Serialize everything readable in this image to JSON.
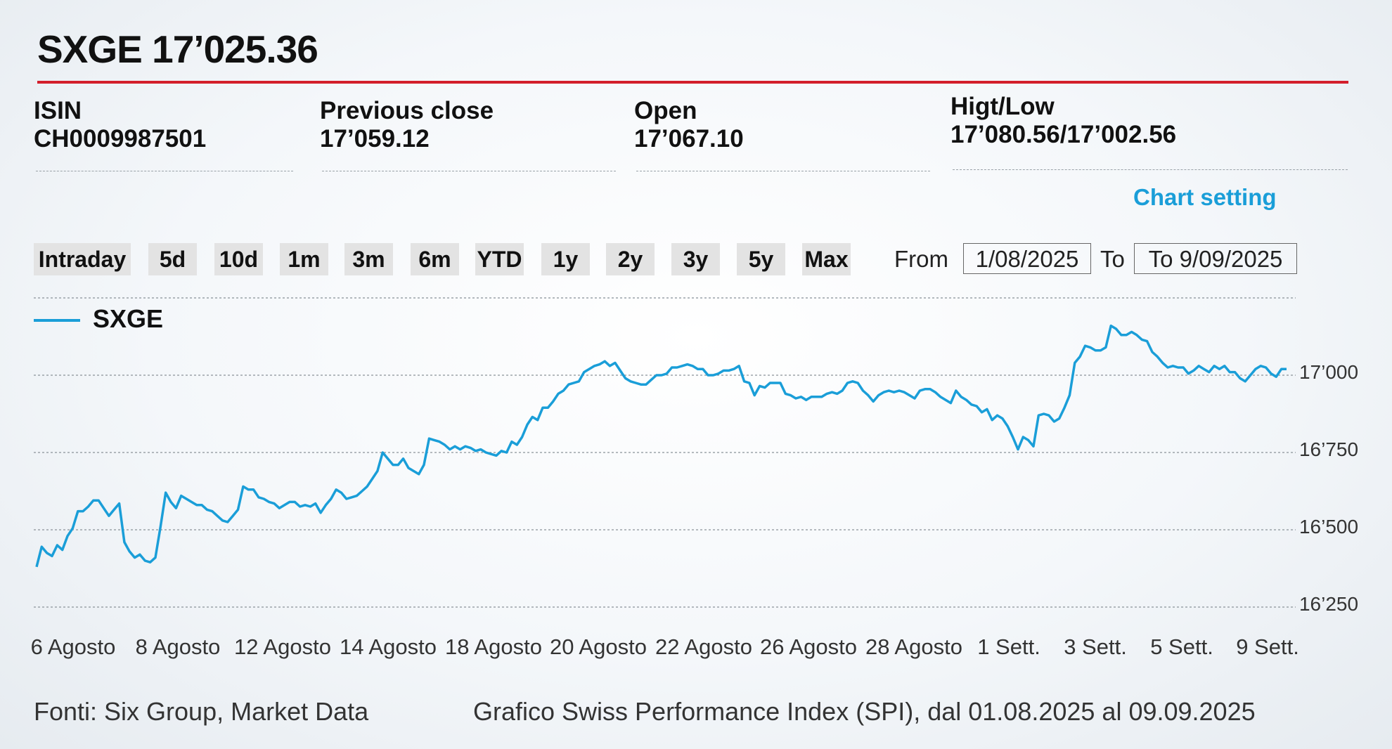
{
  "header": {
    "title": "SXGE 17’025.36"
  },
  "info": {
    "isin": {
      "label": "ISIN",
      "value": "CH0009987501"
    },
    "previous_close": {
      "label": "Previous close",
      "value": "17’059.12"
    },
    "open": {
      "label": "Open",
      "value": "17’067.10"
    },
    "high_low": {
      "label": "Higt/Low",
      "value": "17’080.56/17’002.56"
    }
  },
  "chart_setting": "Chart setting",
  "ranges": [
    "Intraday",
    "5d",
    "10d",
    "1m",
    "3m",
    "6m",
    "YTD",
    "1y",
    "2y",
    "3y",
    "5y",
    "Max"
  ],
  "date_range": {
    "from_label": "From",
    "from_value": "1/08/2025",
    "to_label": "To",
    "to_value": "To 9/09/2025"
  },
  "footer": {
    "source": "Fonti: Six Group, Market Data",
    "caption": "Grafico Swiss Performance Index (SPI), dal 01.08.2025 al 09.09.2025"
  },
  "colors": {
    "accent": "#d31f2b",
    "line": "#1a9ed8",
    "link": "#1a9ed8"
  },
  "chart_data": {
    "type": "line",
    "series": [
      {
        "name": "SXGE",
        "values": [
          16380,
          16445,
          16425,
          16415,
          16450,
          16435,
          16480,
          16505,
          16560,
          16560,
          16575,
          16595,
          16595,
          16570,
          16545,
          16565,
          16585,
          16460,
          16430,
          16410,
          16420,
          16400,
          16395,
          16410,
          16510,
          16620,
          16590,
          16570,
          16610,
          16600,
          16590,
          16580,
          16580,
          16565,
          16560,
          16545,
          16530,
          16525,
          16545,
          16565,
          16640,
          16630,
          16630,
          16605,
          16600,
          16590,
          16585,
          16570,
          16580,
          16590,
          16590,
          16575,
          16580,
          16575,
          16585,
          16555,
          16580,
          16600,
          16630,
          16620,
          16600,
          16605,
          16610,
          16625,
          16640,
          16665,
          16690,
          16750,
          16730,
          16710,
          16710,
          16730,
          16700,
          16690,
          16680,
          16710,
          16795,
          16790,
          16785,
          16775,
          16760,
          16770,
          16760,
          16770,
          16765,
          16755,
          16760,
          16750,
          16745,
          16740,
          16755,
          16750,
          16785,
          16775,
          16800,
          16840,
          16865,
          16855,
          16895,
          16895,
          16915,
          16940,
          16950,
          16970,
          16975,
          16980,
          17010,
          17020,
          17030,
          17035,
          17045,
          17030,
          17040,
          17015,
          16990,
          16980,
          16975,
          16970,
          16970,
          16985,
          17000,
          17000,
          17005,
          17025,
          17025,
          17030,
          17035,
          17030,
          17020,
          17020,
          17000,
          17000,
          17005,
          17015,
          17015,
          17020,
          17030,
          16980,
          16975,
          16935,
          16965,
          16960,
          16975,
          16975,
          16975,
          16940,
          16935,
          16925,
          16930,
          16920,
          16930,
          16930,
          16930,
          16940,
          16945,
          16940,
          16950,
          16975,
          16980,
          16975,
          16950,
          16935,
          16915,
          16935,
          16945,
          16950,
          16945,
          16950,
          16945,
          16935,
          16925,
          16950,
          16955,
          16955,
          16945,
          16930,
          16920,
          16910,
          16950,
          16930,
          16920,
          16905,
          16900,
          16880,
          16890,
          16855,
          16870,
          16860,
          16835,
          16800,
          16760,
          16800,
          16790,
          16770,
          16870,
          16875,
          16870,
          16850,
          16860,
          16895,
          16935,
          17040,
          17060,
          17095,
          17090,
          17080,
          17080,
          17090,
          17160,
          17150,
          17130,
          17130,
          17140,
          17130,
          17115,
          17110,
          17075,
          17060,
          17040,
          17025,
          17030,
          17025,
          17025,
          17005,
          17015,
          17030,
          17020,
          17010,
          17030,
          17020,
          17030,
          17010,
          17010,
          16990,
          16980,
          17000,
          17020,
          17030,
          17025,
          17005,
          16995,
          17020,
          17020
        ]
      }
    ],
    "x_tick_labels": [
      "6 Agosto",
      "8 Agosto",
      "12 Agosto",
      "14 Agosto",
      "18 Agosto",
      "20 Agosto",
      "22 Agosto",
      "26 Agosto",
      "28 Agosto",
      "1 Sett.",
      "3 Sett.",
      "5 Sett.",
      "9 Sett."
    ],
    "y_ticks": [
      16250,
      16500,
      16750,
      17000
    ],
    "y_tick_labels": [
      "16’250",
      "16’500",
      "16’750",
      "17’000"
    ],
    "ylim": [
      16250,
      17200
    ],
    "grid": true,
    "legend_position": "top-left"
  }
}
